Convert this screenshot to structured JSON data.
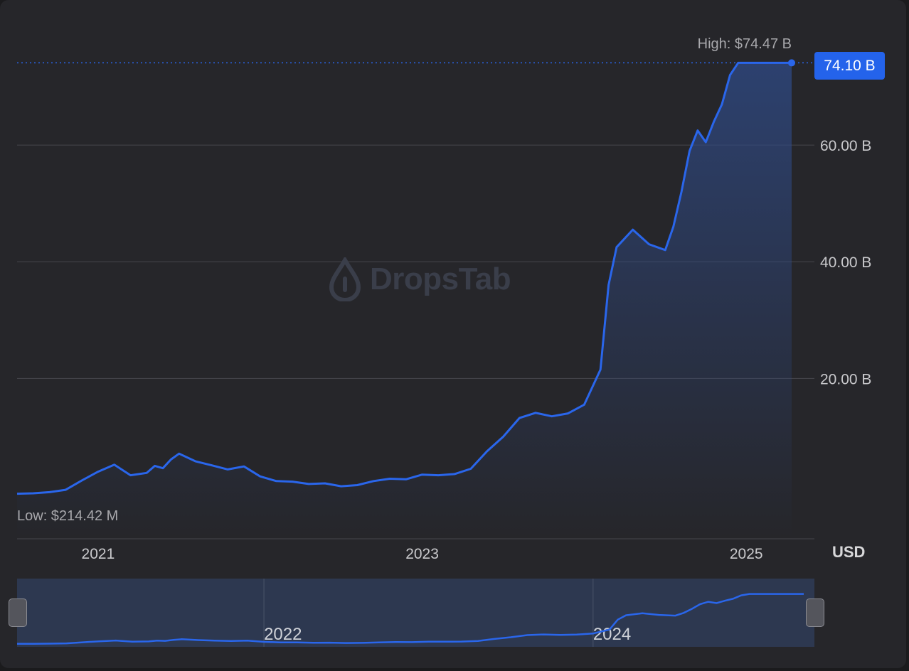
{
  "chart_data": {
    "type": "area",
    "x": [
      2020.5,
      2020.6,
      2020.7,
      2020.8,
      2020.9,
      2021.0,
      2021.1,
      2021.2,
      2021.3,
      2021.35,
      2021.4,
      2021.45,
      2021.5,
      2021.6,
      2021.7,
      2021.8,
      2021.9,
      2022.0,
      2022.1,
      2022.2,
      2022.3,
      2022.4,
      2022.5,
      2022.6,
      2022.7,
      2022.8,
      2022.9,
      2023.0,
      2023.1,
      2023.2,
      2023.3,
      2023.4,
      2023.5,
      2023.6,
      2023.7,
      2023.8,
      2023.9,
      2024.0,
      2024.1,
      2024.15,
      2024.2,
      2024.3,
      2024.4,
      2024.5,
      2024.55,
      2024.6,
      2024.65,
      2024.7,
      2024.75,
      2024.8,
      2024.85,
      2024.9,
      2024.95,
      2025.0,
      2025.05,
      2025.1,
      2025.15,
      2025.2,
      2025.25,
      2025.28
    ],
    "y": [
      0.23,
      0.3,
      0.5,
      0.9,
      2.5,
      4.0,
      5.2,
      3.4,
      3.8,
      5.0,
      4.6,
      6.1,
      7.1,
      5.8,
      5.1,
      4.4,
      4.9,
      3.2,
      2.4,
      2.3,
      1.9,
      2.0,
      1.5,
      1.7,
      2.4,
      2.8,
      2.7,
      3.5,
      3.4,
      3.6,
      4.5,
      7.5,
      10.0,
      13.2,
      14.1,
      13.5,
      14.0,
      15.5,
      21.5,
      36.0,
      42.5,
      45.5,
      43.0,
      42.0,
      46.0,
      52.0,
      59.0,
      62.5,
      60.5,
      64.0,
      67.0,
      72.0,
      74.1,
      74.1,
      74.1,
      74.1,
      74.1,
      74.1,
      74.1,
      74.1
    ],
    "ylim": [
      -7.5,
      80
    ],
    "yticks": [
      "20.00 B",
      "40.00 B",
      "60.00 B"
    ],
    "xticks": [
      "2021",
      "2023",
      "2025"
    ],
    "high_label": "High: $74.47 B",
    "low_label": "Low: $214.42 M",
    "current_value": "74.10 B",
    "currency": "USD",
    "line_color": "#2a66eb",
    "navigator_labels": [
      "2022",
      "2024"
    ]
  },
  "watermark": "DropsTab"
}
